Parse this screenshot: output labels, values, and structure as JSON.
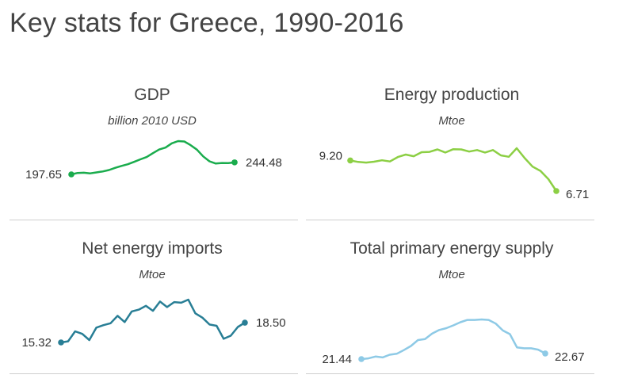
{
  "title": "Key stats for Greece, 1990-2016",
  "chart_data": [
    {
      "type": "line",
      "title": "GDP",
      "subtitle": "billion 2010 USD",
      "color": "#1aac4d",
      "x": [
        1990,
        1991,
        1992,
        1993,
        1994,
        1995,
        1996,
        1997,
        1998,
        1999,
        2000,
        2001,
        2002,
        2003,
        2004,
        2005,
        2006,
        2007,
        2008,
        2009,
        2010,
        2011,
        2012,
        2013,
        2014,
        2015,
        2016
      ],
      "values": [
        197.65,
        203.2,
        204.2,
        201.8,
        205.3,
        209.2,
        214.6,
        223.3,
        230.7,
        237.3,
        246.6,
        256.3,
        265.4,
        280.5,
        294.7,
        302.1,
        318.8,
        327.6,
        326.0,
        311.8,
        294.1,
        267.9,
        248.8,
        240.1,
        242.2,
        242.0,
        244.48
      ],
      "start_label": "197.65",
      "end_label": "244.48"
    },
    {
      "type": "line",
      "title": "Energy production",
      "subtitle": "Mtoe",
      "color": "#8ccf44",
      "x": [
        1990,
        1991,
        1992,
        1993,
        1994,
        1995,
        1996,
        1997,
        1998,
        1999,
        2000,
        2001,
        2002,
        2003,
        2004,
        2005,
        2006,
        2007,
        2008,
        2009,
        2010,
        2011,
        2012,
        2013,
        2014,
        2015,
        2016
      ],
      "values": [
        9.2,
        9.08,
        9.03,
        9.1,
        9.22,
        9.12,
        9.48,
        9.68,
        9.55,
        9.88,
        9.9,
        10.1,
        9.85,
        10.12,
        10.1,
        9.93,
        10.05,
        9.85,
        10.05,
        9.62,
        9.5,
        10.2,
        9.4,
        8.7,
        8.35,
        7.68,
        6.71
      ],
      "start_label": "9.20",
      "end_label": "6.71"
    },
    {
      "type": "line",
      "title": "Net energy imports",
      "subtitle": "Mtoe",
      "color": "#287e95",
      "x": [
        1990,
        1991,
        1992,
        1993,
        1994,
        1995,
        1996,
        1997,
        1998,
        1999,
        2000,
        2001,
        2002,
        2003,
        2004,
        2005,
        2006,
        2007,
        2008,
        2009,
        2010,
        2011,
        2012,
        2013,
        2014,
        2015,
        2016
      ],
      "values": [
        15.32,
        15.5,
        17.1,
        16.7,
        15.7,
        17.7,
        18.1,
        18.4,
        19.6,
        18.6,
        20.3,
        20.6,
        21.2,
        20.4,
        21.9,
        21.0,
        21.8,
        21.7,
        22.2,
        20.0,
        19.3,
        18.2,
        18.0,
        15.9,
        16.4,
        17.8,
        18.5
      ],
      "start_label": "15.32",
      "end_label": "18.50"
    },
    {
      "type": "line",
      "title": "Total primary energy supply",
      "subtitle": "Mtoe",
      "color": "#8ecae6",
      "x": [
        1990,
        1991,
        1992,
        1993,
        1994,
        1995,
        1996,
        1997,
        1998,
        1999,
        2000,
        2001,
        2002,
        2003,
        2004,
        2005,
        2006,
        2007,
        2008,
        2009,
        2010,
        2011,
        2012,
        2013,
        2014,
        2015,
        2016
      ],
      "values": [
        21.44,
        21.6,
        22.0,
        21.8,
        22.4,
        22.6,
        23.4,
        24.3,
        25.6,
        25.8,
        27.0,
        27.8,
        28.2,
        28.8,
        29.5,
        30.0,
        30.0,
        30.1,
        30.0,
        29.2,
        27.7,
        26.9,
        24.0,
        23.8,
        23.8,
        23.5,
        22.67
      ],
      "start_label": "21.44",
      "end_label": "22.67"
    }
  ]
}
